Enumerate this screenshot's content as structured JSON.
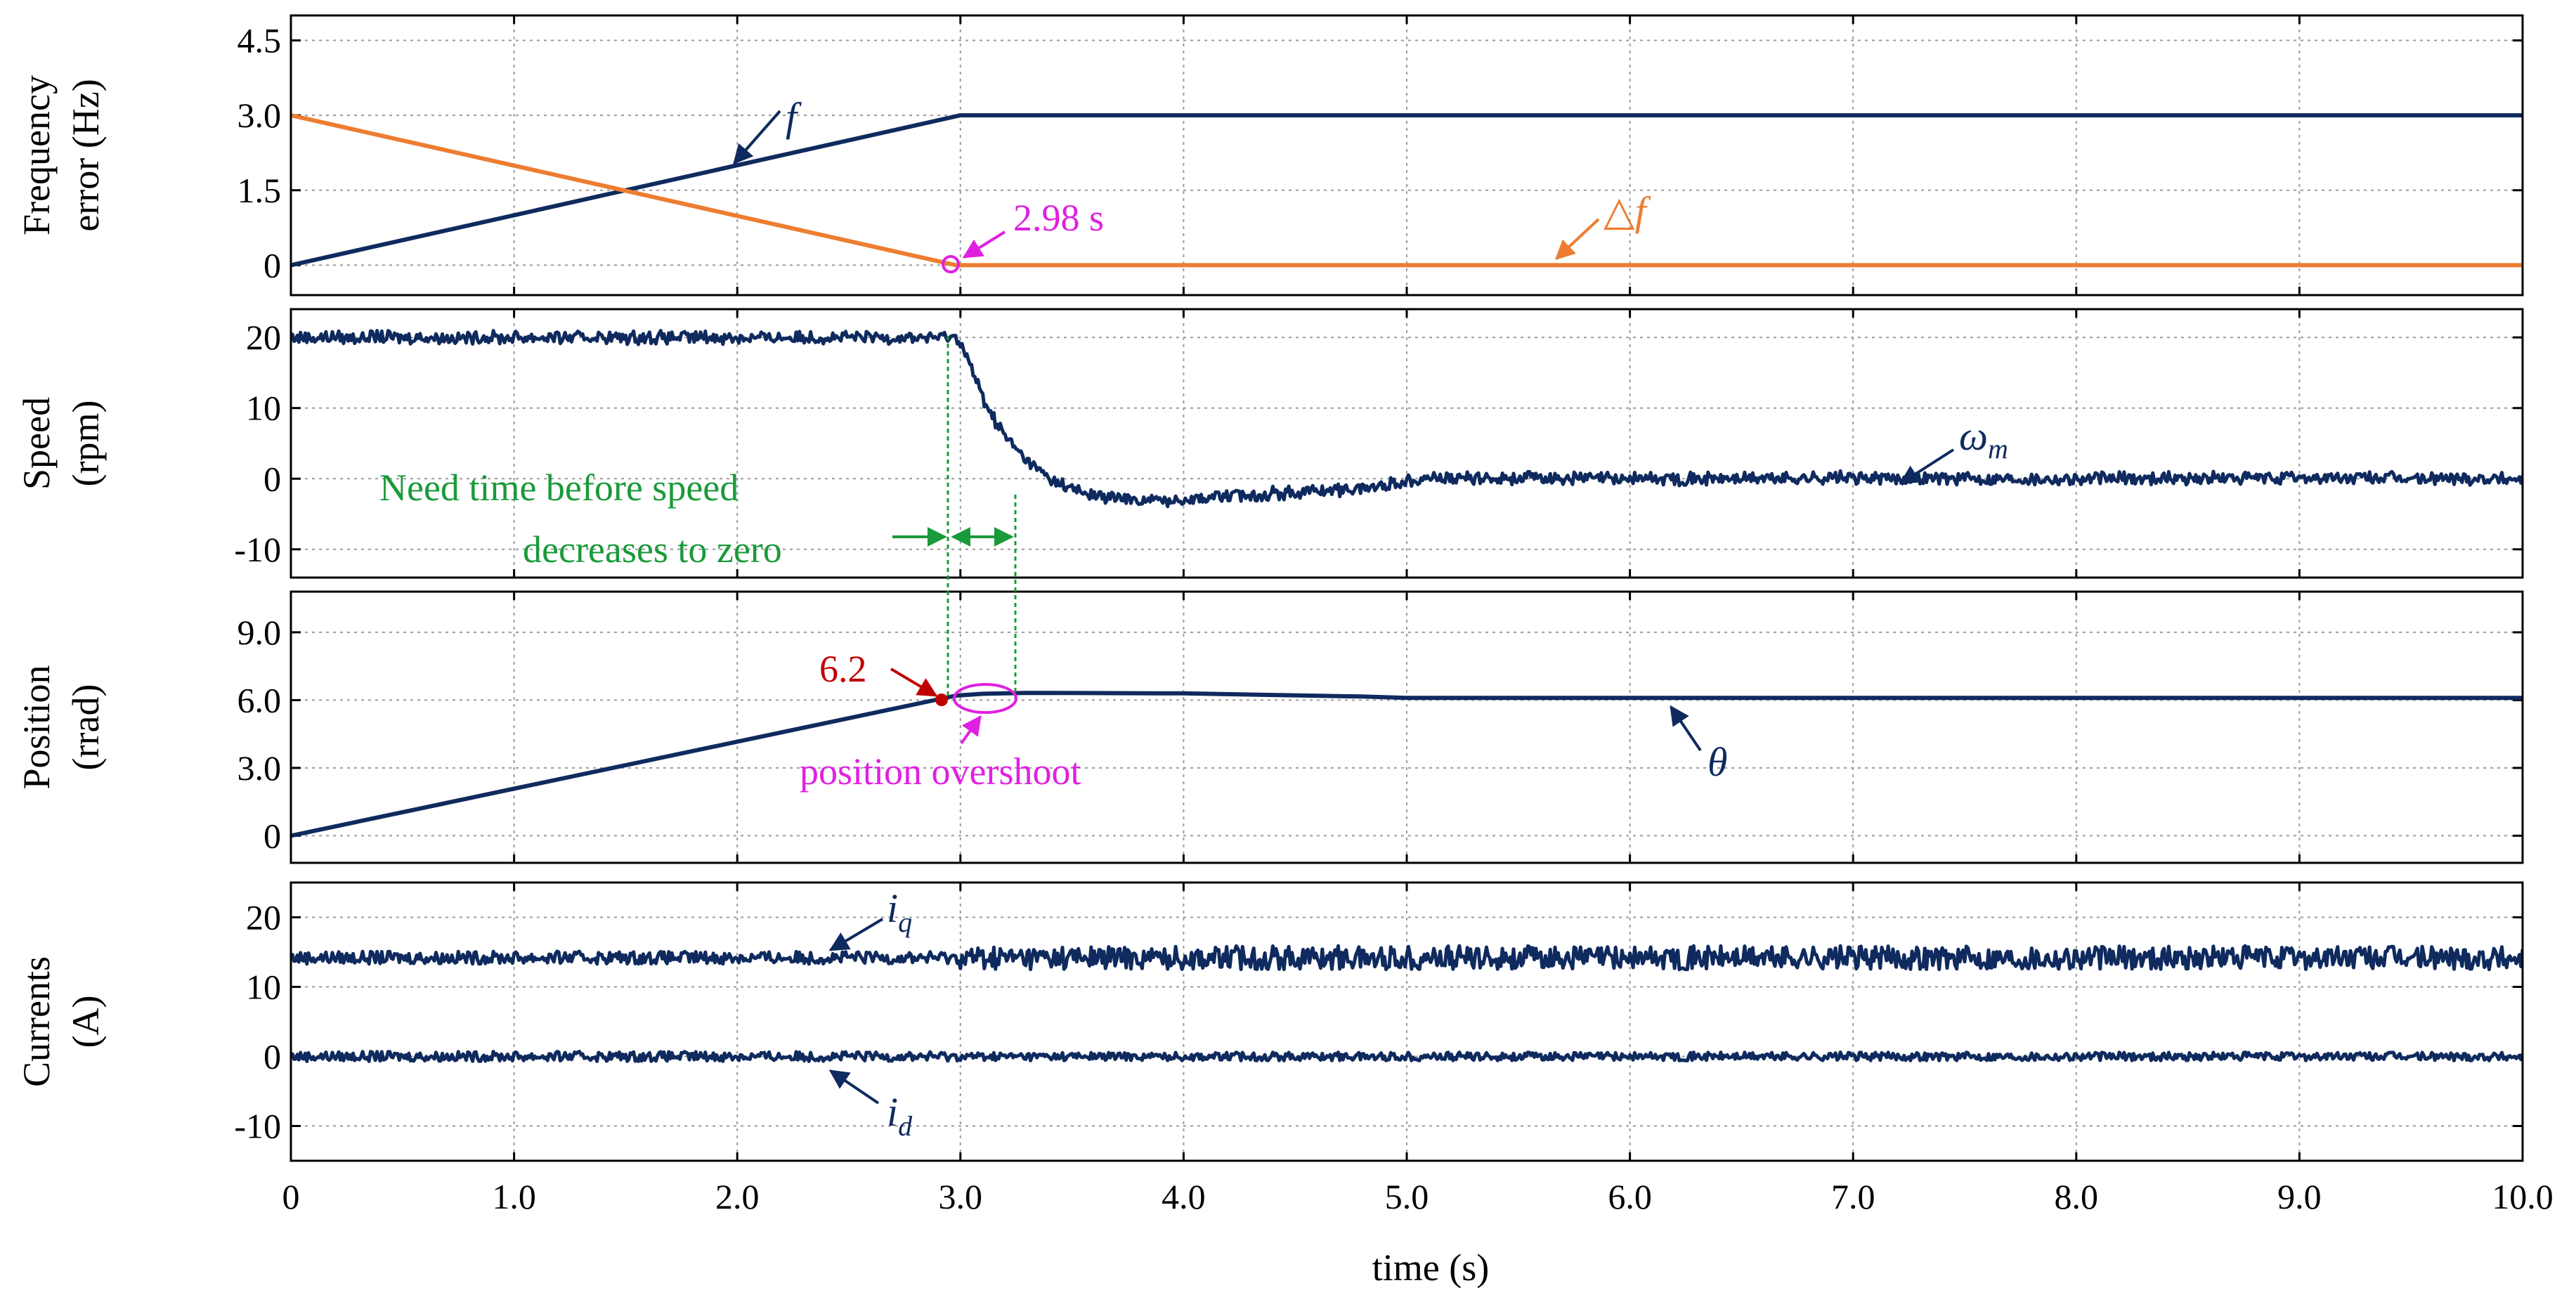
{
  "chart_data": {
    "type": "line",
    "xlabel": "time (s)",
    "xlim": [
      0,
      10
    ],
    "x_ticks": [
      "0",
      "1.0",
      "2.0",
      "3.0",
      "4.0",
      "5.0",
      "6.0",
      "7.0",
      "8.0",
      "9.0",
      "10.0"
    ],
    "panels": [
      {
        "id": "frequency",
        "ylabel": [
          "Frequency",
          "error (Hz)"
        ],
        "ylim": [
          -0.6,
          5.0
        ],
        "y_ticks": [
          {
            "v": 0,
            "label": "0"
          },
          {
            "v": 1.5,
            "label": "1.5"
          },
          {
            "v": 3.0,
            "label": "3.0"
          },
          {
            "v": 4.5,
            "label": "4.5"
          }
        ],
        "series": [
          {
            "name": "f",
            "color": "#0f2a5e",
            "x": [
              0,
              3.0,
              10
            ],
            "y": [
              0,
              3.0,
              3.0
            ]
          },
          {
            "name": "Δf",
            "color": "#ed7d31",
            "x": [
              0,
              2.98,
              10
            ],
            "y": [
              3.0,
              0,
              0
            ]
          }
        ]
      },
      {
        "id": "speed",
        "ylabel": [
          "Speed",
          "(rpm)"
        ],
        "ylim": [
          -14,
          24
        ],
        "y_ticks": [
          {
            "v": -10,
            "label": "-10"
          },
          {
            "v": 0,
            "label": "0"
          },
          {
            "v": 10,
            "label": "10"
          },
          {
            "v": 20,
            "label": "20"
          }
        ],
        "series": [
          {
            "name": "ωm",
            "color": "#0f2a5e",
            "x": [
              0,
              2.98,
              3.0,
              3.05,
              3.1,
              3.15,
              3.2,
              3.3,
              3.4,
              3.5,
              3.6,
              3.8,
              4.0,
              4.2,
              4.5,
              4.8,
              4.95,
              5.05,
              5.5,
              6.0,
              7.0,
              8.0,
              9.0,
              10.0
            ],
            "y": [
              20,
              20,
              19.5,
              15.5,
              11.5,
              8.5,
              6.0,
              2.4,
              0.0,
              -1.5,
              -2.4,
              -3.1,
              -2.9,
              -2.4,
              -1.9,
              -1.4,
              -0.6,
              0.1,
              0.1,
              0,
              0.1,
              0,
              0.1,
              0
            ]
          }
        ]
      },
      {
        "id": "position",
        "ylabel": [
          "Position",
          "(rrad)"
        ],
        "ylim": [
          -1.2,
          10.8
        ],
        "y_ticks": [
          {
            "v": 0,
            "label": "0"
          },
          {
            "v": 3.0,
            "label": "3.0"
          },
          {
            "v": 6.0,
            "label": "6.0"
          },
          {
            "v": 9.0,
            "label": "9.0"
          }
        ],
        "series": [
          {
            "name": "θ",
            "color": "#0f2a5e",
            "x": [
              0,
              2.98,
              3.1,
              3.3,
              4.0,
              4.8,
              5.0,
              10.0
            ],
            "y": [
              0,
              6.2,
              6.28,
              6.32,
              6.3,
              6.16,
              6.1,
              6.1
            ]
          }
        ]
      },
      {
        "id": "currents",
        "ylabel": [
          "Currents",
          "(A)"
        ],
        "ylim": [
          -15,
          25
        ],
        "y_ticks": [
          {
            "v": -10,
            "label": "-10"
          },
          {
            "v": 0,
            "label": "0"
          },
          {
            "v": 10,
            "label": "10"
          },
          {
            "v": 20,
            "label": "20"
          }
        ],
        "series": [
          {
            "name": "iq",
            "color": "#0f2a5e",
            "x": [
              0,
              10
            ],
            "y": [
              14.2,
              14.2
            ]
          },
          {
            "name": "id",
            "color": "#0f2a5e",
            "x": [
              0,
              10
            ],
            "y": [
              0,
              0
            ]
          }
        ]
      }
    ],
    "annotations": {
      "f_label": "f",
      "df_label": "△f",
      "time_marker": "2.98 s",
      "speed_symbol": "ω",
      "speed_sub": "m",
      "need_time_1": "Need time before speed",
      "need_time_2": "decreases to zero",
      "pos_value": "6.2",
      "overshoot": "position overshoot",
      "theta": "θ",
      "iq_symbol": "i",
      "iq_sub": "q",
      "id_symbol": "i",
      "id_sub": "d"
    },
    "colors": {
      "navy": "#0f2a5e",
      "orange": "#ed7d31",
      "magenta": "#e020e0",
      "green": "#1a9a3a",
      "red": "#c00000"
    }
  }
}
